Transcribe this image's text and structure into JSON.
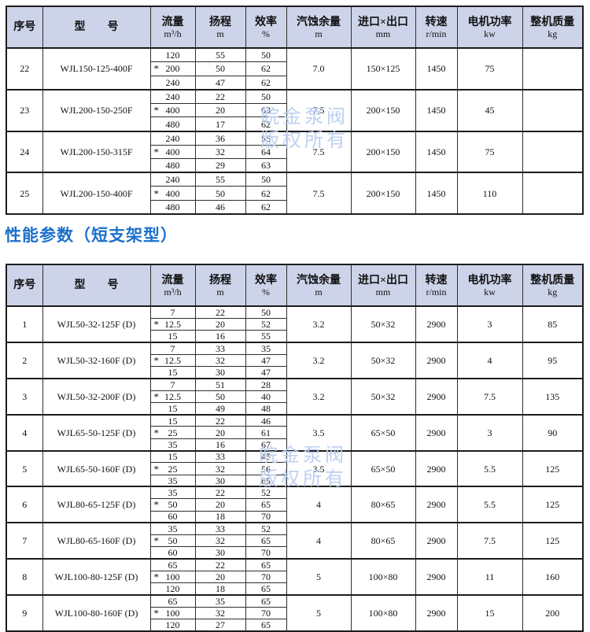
{
  "page": {
    "title": "性能参数（短支架型）"
  },
  "watermark": {
    "line1": "皖金泵阀",
    "line2": "版权所有"
  },
  "columns": [
    {
      "key": "no",
      "label": "序号",
      "unit": ""
    },
    {
      "key": "model",
      "label": "型　　号",
      "unit": ""
    },
    {
      "key": "flow",
      "label": "流量",
      "unit": "m³/h"
    },
    {
      "key": "head",
      "label": "扬程",
      "unit": "m"
    },
    {
      "key": "eff",
      "label": "效率",
      "unit": "%"
    },
    {
      "key": "npsh",
      "label": "汽蚀余量",
      "unit": "m"
    },
    {
      "key": "ports",
      "label": "进口×出口",
      "unit": "mm"
    },
    {
      "key": "speed",
      "label": "转速",
      "unit": "r/min"
    },
    {
      "key": "power",
      "label": "电机功率",
      "unit": "kw"
    },
    {
      "key": "weight",
      "label": "整机质量",
      "unit": "kg"
    }
  ],
  "colors": {
    "header_bg": "#cdd4e9",
    "title_blue": "#1b70c8",
    "watermark_blue": "#bccdf0"
  },
  "table1": {
    "rows": [
      {
        "no": "22",
        "model": "WJL150-125-400F",
        "sub": [
          {
            "star": false,
            "flow": "120",
            "head": "55",
            "eff": "50"
          },
          {
            "star": true,
            "flow": "200",
            "head": "50",
            "eff": "62"
          },
          {
            "star": false,
            "flow": "240",
            "head": "47",
            "eff": "62"
          }
        ],
        "npsh": "7.0",
        "ports": "150×125",
        "speed": "1450",
        "power": "75",
        "weight": ""
      },
      {
        "no": "23",
        "model": "WJL200-150-250F",
        "sub": [
          {
            "star": false,
            "flow": "240",
            "head": "22",
            "eff": "50"
          },
          {
            "star": true,
            "flow": "400",
            "head": "20",
            "eff": "63"
          },
          {
            "star": false,
            "flow": "480",
            "head": "17",
            "eff": "62"
          }
        ],
        "npsh": "7.5",
        "ports": "200×150",
        "speed": "1450",
        "power": "45",
        "weight": ""
      },
      {
        "no": "24",
        "model": "WJL200-150-315F",
        "sub": [
          {
            "star": false,
            "flow": "240",
            "head": "36",
            "eff": "55"
          },
          {
            "star": true,
            "flow": "400",
            "head": "32",
            "eff": "64"
          },
          {
            "star": false,
            "flow": "480",
            "head": "29",
            "eff": "63"
          }
        ],
        "npsh": "7.5",
        "ports": "200×150",
        "speed": "1450",
        "power": "75",
        "weight": ""
      },
      {
        "no": "25",
        "model": "WJL200-150-400F",
        "sub": [
          {
            "star": false,
            "flow": "240",
            "head": "55",
            "eff": "50"
          },
          {
            "star": true,
            "flow": "400",
            "head": "50",
            "eff": "62"
          },
          {
            "star": false,
            "flow": "480",
            "head": "46",
            "eff": "62"
          }
        ],
        "npsh": "7.5",
        "ports": "200×150",
        "speed": "1450",
        "power": "110",
        "weight": ""
      }
    ]
  },
  "table2": {
    "rows": [
      {
        "no": "1",
        "model": "WJL50-32-125F (D)",
        "sub": [
          {
            "star": false,
            "flow": "7",
            "head": "22",
            "eff": "50"
          },
          {
            "star": true,
            "flow": "12.5",
            "head": "20",
            "eff": "52"
          },
          {
            "star": false,
            "flow": "15",
            "head": "16",
            "eff": "55"
          }
        ],
        "npsh": "3.2",
        "ports": "50×32",
        "speed": "2900",
        "power": "3",
        "weight": "85"
      },
      {
        "no": "2",
        "model": "WJL50-32-160F (D)",
        "sub": [
          {
            "star": false,
            "flow": "7",
            "head": "33",
            "eff": "35"
          },
          {
            "star": true,
            "flow": "12.5",
            "head": "32",
            "eff": "47"
          },
          {
            "star": false,
            "flow": "15",
            "head": "30",
            "eff": "47"
          }
        ],
        "npsh": "3.2",
        "ports": "50×32",
        "speed": "2900",
        "power": "4",
        "weight": "95"
      },
      {
        "no": "3",
        "model": "WJL50-32-200F (D)",
        "sub": [
          {
            "star": false,
            "flow": "7",
            "head": "51",
            "eff": "28"
          },
          {
            "star": true,
            "flow": "12.5",
            "head": "50",
            "eff": "40"
          },
          {
            "star": false,
            "flow": "15",
            "head": "49",
            "eff": "48"
          }
        ],
        "npsh": "3.2",
        "ports": "50×32",
        "speed": "2900",
        "power": "7.5",
        "weight": "135"
      },
      {
        "no": "4",
        "model": "WJL65-50-125F (D)",
        "sub": [
          {
            "star": false,
            "flow": "15",
            "head": "22",
            "eff": "46"
          },
          {
            "star": true,
            "flow": "25",
            "head": "20",
            "eff": "61"
          },
          {
            "star": false,
            "flow": "35",
            "head": "16",
            "eff": "67"
          }
        ],
        "npsh": "3.5",
        "ports": "65×50",
        "speed": "2900",
        "power": "3",
        "weight": "90"
      },
      {
        "no": "5",
        "model": "WJL65-50-160F (D)",
        "sub": [
          {
            "star": false,
            "flow": "15",
            "head": "33",
            "eff": "45"
          },
          {
            "star": true,
            "flow": "25",
            "head": "32",
            "eff": "56"
          },
          {
            "star": false,
            "flow": "35",
            "head": "30",
            "eff": "65"
          }
        ],
        "npsh": "3.5",
        "ports": "65×50",
        "speed": "2900",
        "power": "5.5",
        "weight": "125"
      },
      {
        "no": "6",
        "model": "WJL80-65-125F (D)",
        "sub": [
          {
            "star": false,
            "flow": "35",
            "head": "22",
            "eff": "52"
          },
          {
            "star": true,
            "flow": "50",
            "head": "20",
            "eff": "65"
          },
          {
            "star": false,
            "flow": "60",
            "head": "18",
            "eff": "70"
          }
        ],
        "npsh": "4",
        "ports": "80×65",
        "speed": "2900",
        "power": "5.5",
        "weight": "125"
      },
      {
        "no": "7",
        "model": "WJL80-65-160F (D)",
        "sub": [
          {
            "star": false,
            "flow": "35",
            "head": "33",
            "eff": "52"
          },
          {
            "star": true,
            "flow": "50",
            "head": "32",
            "eff": "65"
          },
          {
            "star": false,
            "flow": "60",
            "head": "30",
            "eff": "70"
          }
        ],
        "npsh": "4",
        "ports": "80×65",
        "speed": "2900",
        "power": "7.5",
        "weight": "125"
      },
      {
        "no": "8",
        "model": "WJL100-80-125F (D)",
        "sub": [
          {
            "star": false,
            "flow": "65",
            "head": "22",
            "eff": "65"
          },
          {
            "star": true,
            "flow": "100",
            "head": "20",
            "eff": "70"
          },
          {
            "star": false,
            "flow": "120",
            "head": "18",
            "eff": "65"
          }
        ],
        "npsh": "5",
        "ports": "100×80",
        "speed": "2900",
        "power": "11",
        "weight": "160"
      },
      {
        "no": "9",
        "model": "WJL100-80-160F (D)",
        "sub": [
          {
            "star": false,
            "flow": "65",
            "head": "35",
            "eff": "65"
          },
          {
            "star": true,
            "flow": "100",
            "head": "32",
            "eff": "70"
          },
          {
            "star": false,
            "flow": "120",
            "head": "27",
            "eff": "65"
          }
        ],
        "npsh": "5",
        "ports": "100×80",
        "speed": "2900",
        "power": "15",
        "weight": "200"
      }
    ]
  }
}
